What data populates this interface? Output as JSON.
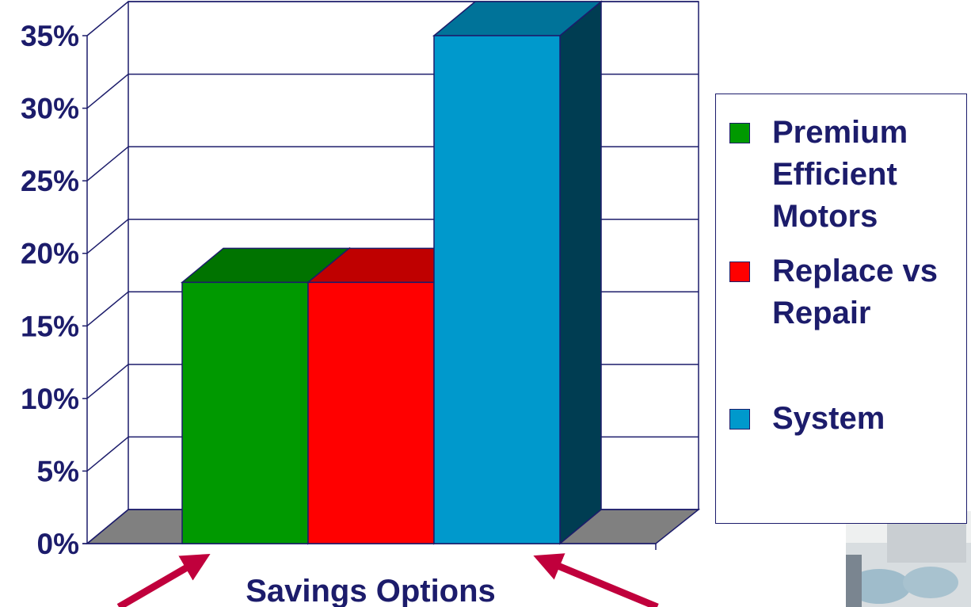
{
  "chart_data": {
    "type": "bar3d",
    "x_label": "Savings Options",
    "series": [
      {
        "name": "Premium Efficient Motors",
        "color": "#009900",
        "values": [
          18
        ]
      },
      {
        "name": "Replace vs Repair",
        "color": "#ff0000",
        "values": [
          18
        ]
      },
      {
        "name": "System",
        "color": "#0099cc",
        "values": [
          35
        ]
      }
    ],
    "ylim": [
      0,
      35
    ],
    "yticks": [
      {
        "value": 0,
        "label": "0%"
      },
      {
        "value": 5,
        "label": "5%"
      },
      {
        "value": 10,
        "label": "10%"
      },
      {
        "value": 15,
        "label": "15%"
      },
      {
        "value": 20,
        "label": "20%"
      },
      {
        "value": 25,
        "label": "25%"
      },
      {
        "value": 30,
        "label": "30%"
      },
      {
        "value": 35,
        "label": "35%"
      }
    ],
    "grid": true
  }
}
